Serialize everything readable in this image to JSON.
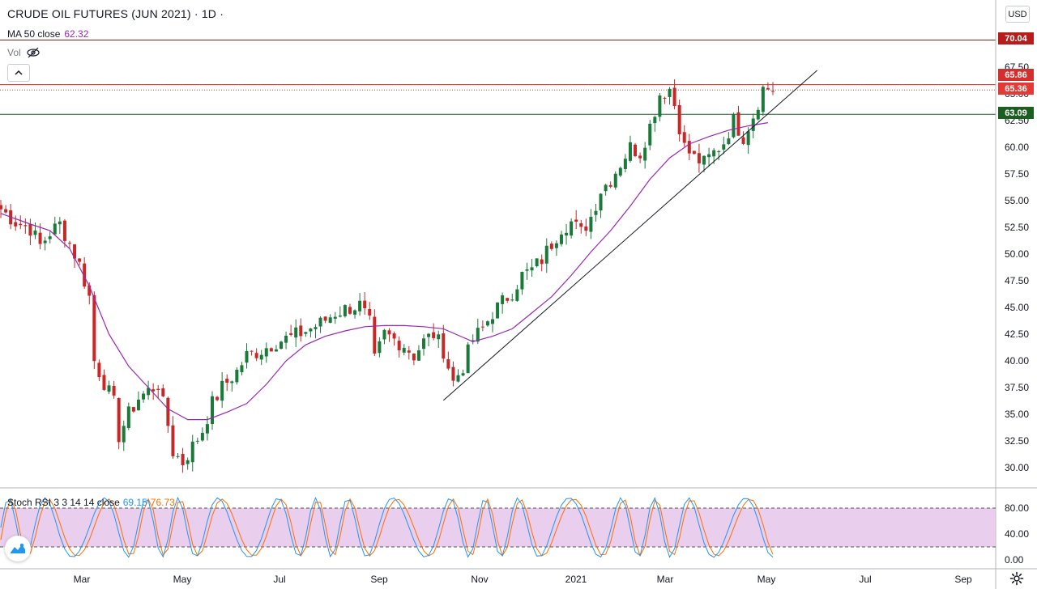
{
  "header": {
    "symbol_title": "CRUDE OIL FUTURES (JUN 2021) · 1D ·",
    "ma_label": "MA 50 close",
    "ma_value": "62.32",
    "vol_label": "Vol",
    "currency": "USD"
  },
  "price_tags": {
    "resistance_high": "70.04",
    "high_marker": "65.86",
    "last_price": "65.36",
    "support_level": "63.09"
  },
  "oscillator": {
    "label": "Stoch RSI 3 3 14 14 close",
    "k_value": "69.15",
    "d_value": "76.73",
    "upper_band": 80,
    "lower_band": 20
  },
  "colors": {
    "up": "#26a69a",
    "down": "#ef5350",
    "candle_up_body": "#1b7a3a",
    "candle_down_body": "#c62828",
    "ma": "#9c27b0",
    "k_line": "#2196f3",
    "d_line": "#ff6d00",
    "band_fill": "#e1bee7",
    "tag_red": "#b71c1c",
    "tag_green": "#1b5e20"
  },
  "chart_data": {
    "type": "candlestick",
    "ylim": [
      28.5,
      71.5
    ],
    "y_ticks": [
      30.0,
      32.5,
      35.0,
      37.5,
      40.0,
      42.5,
      45.0,
      47.5,
      50.0,
      52.5,
      55.0,
      57.5,
      60.0,
      62.5,
      65.0,
      67.5
    ],
    "x_ticks": [
      "Mar",
      "May",
      "Jul",
      "Sep",
      "Nov",
      "2021",
      "Mar",
      "May",
      "Jul",
      "Sep"
    ],
    "oscillator_ticks": [
      80,
      40,
      0
    ],
    "horizontal_levels": [
      70.04,
      65.86,
      65.36,
      63.09
    ],
    "close_path": [
      [
        0,
        54.2
      ],
      [
        3,
        53.0
      ],
      [
        6,
        52.4
      ],
      [
        8,
        50.8
      ],
      [
        10,
        52.0
      ],
      [
        12,
        52.8
      ],
      [
        14,
        51.0
      ],
      [
        16,
        49.0
      ],
      [
        18,
        46.0
      ],
      [
        19,
        40.0
      ],
      [
        21,
        38.0
      ],
      [
        23,
        36.0
      ],
      [
        24,
        33.0
      ],
      [
        26,
        35.0
      ],
      [
        28,
        36.5
      ],
      [
        30,
        37.2
      ],
      [
        32,
        37.8
      ],
      [
        34,
        34.0
      ],
      [
        35,
        31.5
      ],
      [
        37,
        30.5
      ],
      [
        39,
        32.0
      ],
      [
        41,
        33.5
      ],
      [
        43,
        36.0
      ],
      [
        45,
        37.5
      ],
      [
        48,
        39.0
      ],
      [
        50,
        40.5
      ],
      [
        53,
        41.0
      ],
      [
        56,
        41.8
      ],
      [
        59,
        42.2
      ],
      [
        62,
        42.8
      ],
      [
        65,
        43.5
      ],
      [
        68,
        44.5
      ],
      [
        71,
        45.0
      ],
      [
        73,
        45.2
      ],
      [
        75,
        43.5
      ],
      [
        76,
        40.0
      ],
      [
        78,
        42.5
      ],
      [
        80,
        42.0
      ],
      [
        82,
        41.5
      ],
      [
        84,
        40.5
      ],
      [
        86,
        41.8
      ],
      [
        88,
        42.5
      ],
      [
        90,
        41.0
      ],
      [
        92,
        38.0
      ],
      [
        94,
        39.5
      ],
      [
        96,
        42.0
      ],
      [
        98,
        43.0
      ],
      [
        100,
        44.5
      ],
      [
        102,
        45.5
      ],
      [
        104,
        46.5
      ],
      [
        106,
        48.0
      ],
      [
        108,
        48.5
      ],
      [
        110,
        49.5
      ],
      [
        112,
        51.0
      ],
      [
        114,
        52.5
      ],
      [
        116,
        53.0
      ],
      [
        118,
        52.0
      ],
      [
        120,
        53.5
      ],
      [
        122,
        56.0
      ],
      [
        124,
        57.0
      ],
      [
        126,
        58.5
      ],
      [
        128,
        60.0
      ],
      [
        130,
        59.5
      ],
      [
        132,
        62.0
      ],
      [
        134,
        65.0
      ],
      [
        136,
        65.5
      ],
      [
        137,
        64.0
      ],
      [
        139,
        60.0
      ],
      [
        141,
        59.0
      ],
      [
        143,
        58.5
      ],
      [
        145,
        59.5
      ],
      [
        147,
        60.5
      ],
      [
        149,
        62.5
      ],
      [
        151,
        61.0
      ],
      [
        153,
        63.0
      ],
      [
        155,
        65.5
      ],
      [
        156,
        65.5
      ],
      [
        157,
        65.4
      ]
    ],
    "ma50_path": [
      [
        0,
        53.8
      ],
      [
        6,
        52.8
      ],
      [
        10,
        52.2
      ],
      [
        14,
        50.5
      ],
      [
        18,
        47.0
      ],
      [
        22,
        42.5
      ],
      [
        26,
        39.5
      ],
      [
        30,
        37.5
      ],
      [
        34,
        35.5
      ],
      [
        38,
        34.5
      ],
      [
        42,
        34.5
      ],
      [
        46,
        35.2
      ],
      [
        50,
        36.0
      ],
      [
        54,
        37.8
      ],
      [
        58,
        40.0
      ],
      [
        62,
        41.5
      ],
      [
        66,
        42.3
      ],
      [
        70,
        42.8
      ],
      [
        74,
        43.2
      ],
      [
        78,
        43.3
      ],
      [
        82,
        43.3
      ],
      [
        86,
        43.2
      ],
      [
        90,
        43.0
      ],
      [
        94,
        42.2
      ],
      [
        96,
        41.8
      ],
      [
        100,
        42.3
      ],
      [
        104,
        43.0
      ],
      [
        108,
        44.5
      ],
      [
        112,
        46.0
      ],
      [
        116,
        48.0
      ],
      [
        120,
        50.2
      ],
      [
        124,
        52.2
      ],
      [
        128,
        54.5
      ],
      [
        132,
        57.0
      ],
      [
        136,
        59.0
      ],
      [
        140,
        60.3
      ],
      [
        144,
        61.0
      ],
      [
        148,
        61.6
      ],
      [
        152,
        62.0
      ],
      [
        156,
        62.3
      ]
    ],
    "trendline": [
      [
        90,
        36.3
      ],
      [
        166,
        67.2
      ]
    ]
  }
}
